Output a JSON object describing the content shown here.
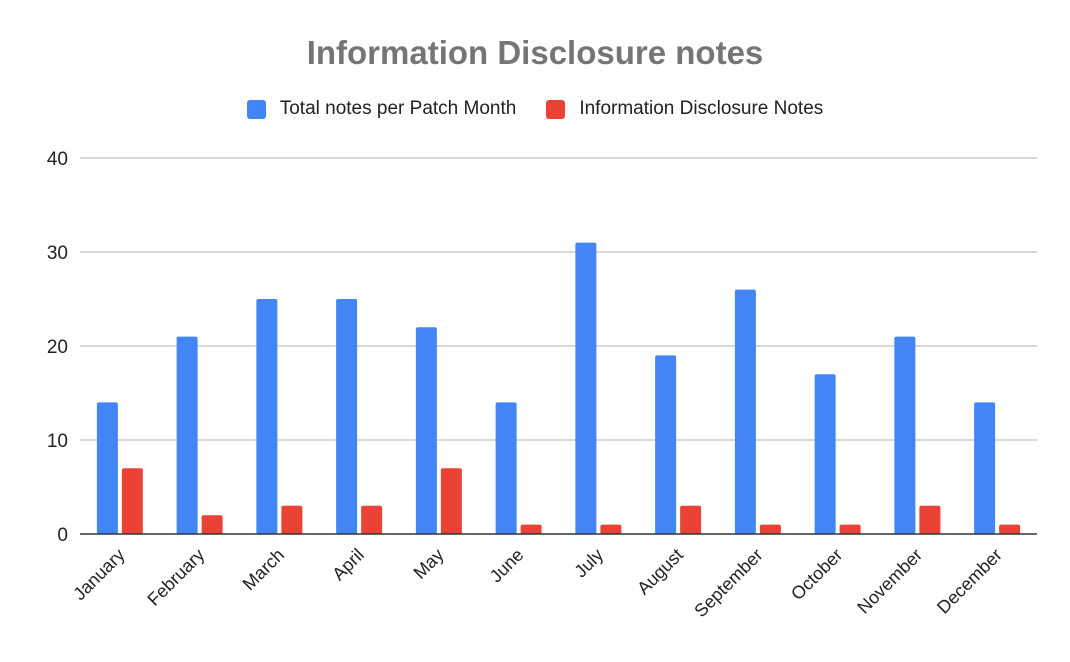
{
  "chart_data": {
    "type": "bar",
    "title": "Information Disclosure notes",
    "xlabel": "",
    "ylabel": "",
    "ylim": [
      0,
      40
    ],
    "yticks": [
      0,
      10,
      20,
      30,
      40
    ],
    "grid": true,
    "legend_position": "top",
    "categories": [
      "January",
      "February",
      "March",
      "April",
      "May",
      "June",
      "July",
      "August",
      "September",
      "October",
      "November",
      "December"
    ],
    "series": [
      {
        "name": "Total notes per Patch Month",
        "color": "#4285f4",
        "values": [
          14,
          21,
          25,
          25,
          22,
          14,
          31,
          19,
          26,
          17,
          21,
          14
        ]
      },
      {
        "name": "Information Disclosure Notes",
        "color": "#ea4335",
        "values": [
          7,
          2,
          3,
          3,
          7,
          1,
          1,
          3,
          1,
          1,
          3,
          1
        ]
      }
    ]
  }
}
